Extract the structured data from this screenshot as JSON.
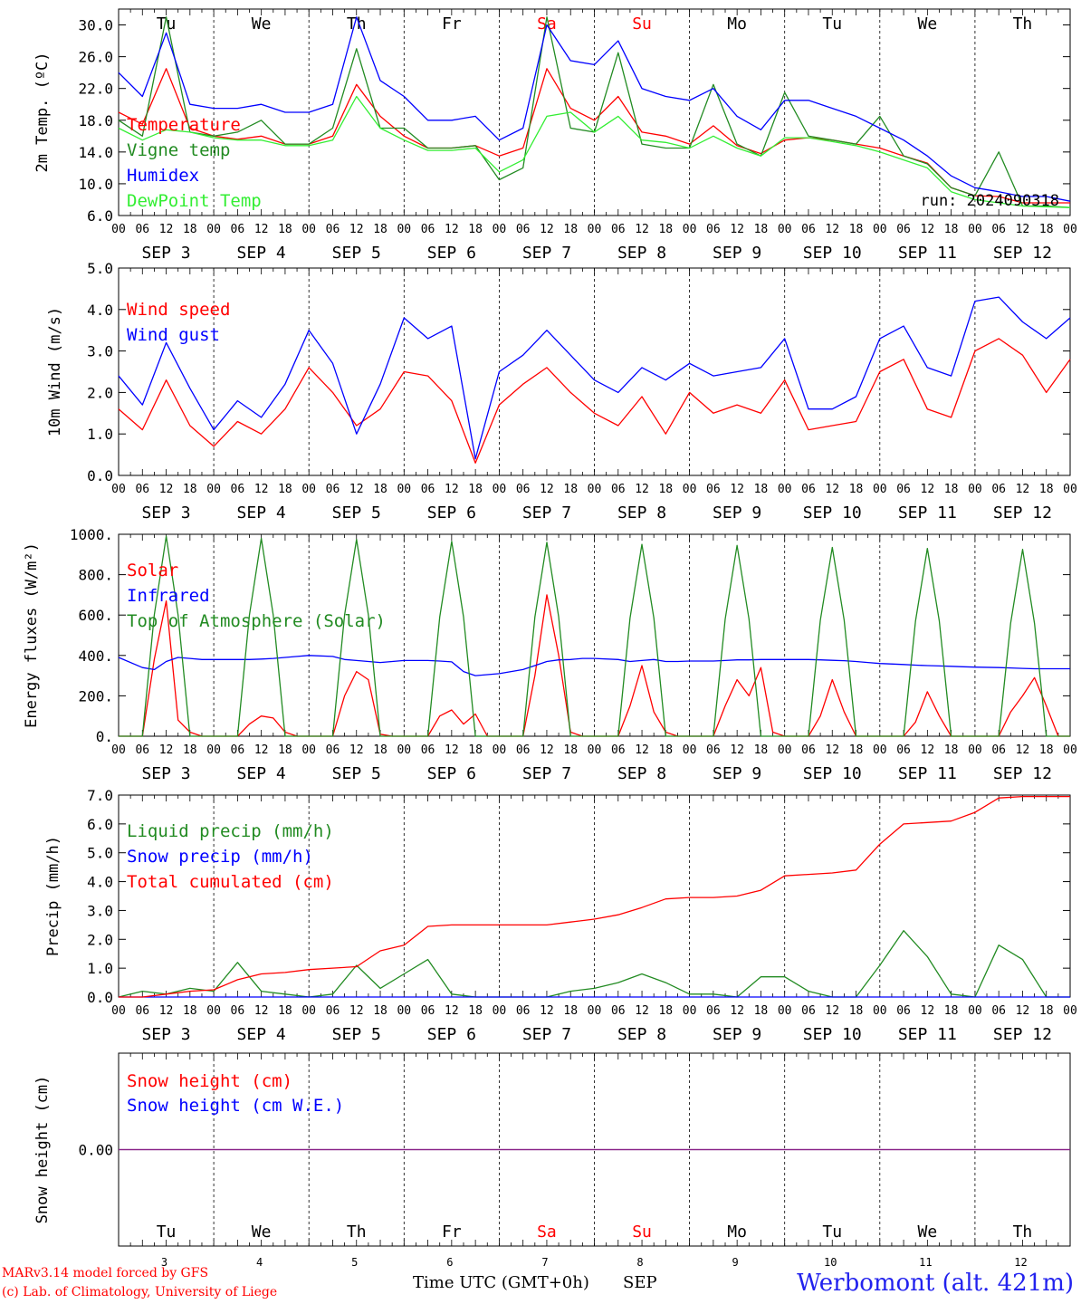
{
  "days": {
    "weekday_labels": [
      "Tu",
      "We",
      "Th",
      "Fr",
      "Sa",
      "Su",
      "Mo",
      "Tu",
      "We",
      "Th"
    ],
    "weekend_color": "#ff0000",
    "weekday_color": "#000000",
    "weekend_flags": [
      false,
      false,
      false,
      false,
      true,
      true,
      false,
      false,
      false,
      false
    ],
    "date_labels": [
      "SEP  3",
      "SEP  4",
      "SEP  5",
      "SEP  6",
      "SEP  7",
      "SEP  8",
      "SEP  9",
      "SEP 10",
      "SEP 11",
      "SEP 12"
    ],
    "day_numbers": [
      "3",
      "4",
      "5",
      "6",
      "7",
      "8",
      "9",
      "10",
      "11",
      "12"
    ],
    "hour_ticks": [
      "00",
      "06",
      "12",
      "18"
    ],
    "final_hour": "00"
  },
  "run_label": "run: 2024090318",
  "footer": {
    "model_line": "MARv3.14 model forced by GFS",
    "credit_line": "(c) Lab. of Climatology, University of Liege",
    "time_axis_label": "Time UTC (GMT+0h)",
    "month_label": "SEP",
    "station": "Werbomont (alt. 421m)"
  },
  "chart_data": [
    {
      "type": "line",
      "ylabel": "2m Temp. (ºC)",
      "ylim": [
        6,
        32
      ],
      "yticks": [
        6,
        10,
        14,
        18,
        22,
        26,
        30
      ],
      "ytick_labels": [
        "6.0",
        "10.0",
        "14.0",
        "18.0",
        "22.0",
        "26.0",
        "30.0"
      ],
      "x": [
        0,
        6,
        12,
        18,
        24,
        30,
        36,
        42,
        48,
        54,
        60,
        66,
        72,
        78,
        84,
        90,
        96,
        102,
        108,
        114,
        120,
        126,
        132,
        138,
        144,
        150,
        156,
        162,
        168,
        174,
        180,
        186,
        192,
        198,
        204,
        210,
        216,
        222,
        228,
        234,
        240
      ],
      "series": [
        {
          "name": "Temperature",
          "color": "#ff0000",
          "values": [
            19,
            17.5,
            24.5,
            17,
            16,
            15.6,
            16,
            15,
            15,
            16,
            22.5,
            18.5,
            16,
            14.5,
            14.5,
            14.8,
            13.5,
            14.5,
            24.5,
            19.5,
            18,
            21,
            16.5,
            16,
            15,
            17.3,
            14.8,
            13.8,
            15.5,
            15.8,
            15.5,
            15,
            14.5,
            13.5,
            12.6,
            9.5,
            8.5,
            8.4,
            7.6,
            7.6,
            7.6
          ]
        },
        {
          "name": "Vigne temp",
          "color": "#228b22",
          "values": [
            18,
            16,
            31,
            16.5,
            16,
            16.5,
            18,
            15,
            15,
            17,
            27,
            17,
            17,
            14.5,
            14.5,
            14.8,
            10.5,
            12,
            31,
            17,
            16.5,
            26.5,
            15,
            14.5,
            14.5,
            22.5,
            15,
            13.5,
            21.5,
            16,
            15.5,
            15,
            18.5,
            13.5,
            12.5,
            9.5,
            8.5,
            14,
            7.2,
            7.2,
            7
          ]
        },
        {
          "name": "Humidex",
          "color": "#0000ff",
          "values": [
            24,
            21,
            29,
            20,
            19.5,
            19.5,
            20,
            19,
            19,
            20,
            31,
            23,
            21,
            18,
            18,
            18.5,
            15.5,
            17,
            30,
            25.5,
            25,
            28,
            22,
            21,
            20.5,
            22,
            18.5,
            16.8,
            20.5,
            20.5,
            19.5,
            18.5,
            17,
            15.5,
            13.5,
            11,
            9.5,
            9,
            8.4,
            8.4,
            7.8
          ]
        },
        {
          "name": "DewPoint Temp",
          "color": "#33ee33",
          "values": [
            17,
            15.5,
            16.8,
            16.5,
            15.8,
            15.5,
            15.5,
            14.8,
            14.8,
            15.5,
            21,
            17,
            15.5,
            14.2,
            14.2,
            14.5,
            11.5,
            13,
            18.5,
            19,
            16.5,
            18.5,
            15.5,
            15.2,
            14.5,
            16,
            14.5,
            13.5,
            15.8,
            15.8,
            15.3,
            14.8,
            14,
            13,
            12,
            9,
            8,
            7.6,
            7.2,
            7.1,
            7
          ]
        }
      ],
      "legend_placement": "top-left",
      "grid": false
    },
    {
      "type": "line",
      "ylabel": "10m Wind (m/s)",
      "ylim": [
        0,
        5
      ],
      "yticks": [
        0,
        1,
        2,
        3,
        4,
        5
      ],
      "ytick_labels": [
        "0.0",
        "1.0",
        "2.0",
        "3.0",
        "4.0",
        "5.0"
      ],
      "x": [
        0,
        6,
        12,
        18,
        24,
        30,
        36,
        42,
        48,
        54,
        60,
        66,
        72,
        78,
        84,
        90,
        96,
        102,
        108,
        114,
        120,
        126,
        132,
        138,
        144,
        150,
        156,
        162,
        168,
        174,
        180,
        186,
        192,
        198,
        204,
        210,
        216,
        222,
        228,
        234,
        240
      ],
      "series": [
        {
          "name": "Wind speed",
          "color": "#ff0000",
          "values": [
            1.6,
            1.1,
            2.3,
            1.2,
            0.7,
            1.3,
            1.0,
            1.6,
            2.6,
            2.0,
            1.2,
            1.6,
            2.5,
            2.4,
            1.8,
            0.3,
            1.7,
            2.2,
            2.6,
            2.0,
            1.5,
            1.2,
            1.9,
            1.0,
            2.0,
            1.5,
            1.7,
            1.5,
            2.3,
            1.1,
            1.2,
            1.3,
            2.5,
            2.8,
            1.6,
            1.4,
            3.0,
            3.3,
            2.9,
            2.0,
            2.8
          ]
        },
        {
          "name": "Wind gust",
          "color": "#0000ff",
          "values": [
            2.4,
            1.7,
            3.2,
            2.1,
            1.1,
            1.8,
            1.4,
            2.2,
            3.5,
            2.7,
            1.0,
            2.2,
            3.8,
            3.3,
            3.6,
            0.4,
            2.5,
            2.9,
            3.5,
            2.9,
            2.3,
            2.0,
            2.6,
            2.3,
            2.7,
            2.4,
            2.5,
            2.6,
            3.3,
            1.6,
            1.6,
            1.9,
            3.3,
            3.6,
            2.6,
            2.4,
            4.2,
            4.3,
            3.7,
            3.3,
            3.8
          ]
        }
      ],
      "legend_placement": "top-left",
      "grid": false
    },
    {
      "type": "line",
      "ylabel": "Energy fluxes (W/m²)",
      "ylim": [
        0,
        1000
      ],
      "yticks": [
        0,
        200,
        400,
        600,
        800,
        1000
      ],
      "ytick_labels": [
        "0.",
        "200.",
        "400.",
        "600.",
        "800.",
        "1000."
      ],
      "x": [
        0,
        6,
        9,
        12,
        15,
        18,
        21,
        24,
        30,
        33,
        36,
        39,
        42,
        45,
        48,
        54,
        57,
        60,
        63,
        66,
        69,
        72,
        78,
        81,
        84,
        87,
        90,
        93,
        96,
        102,
        105,
        108,
        111,
        114,
        117,
        120,
        126,
        129,
        132,
        135,
        138,
        141,
        144,
        150,
        153,
        156,
        159,
        162,
        165,
        168,
        174,
        177,
        180,
        183,
        186,
        189,
        192,
        198,
        201,
        204,
        207,
        210,
        213,
        216,
        222,
        225,
        228,
        231,
        234,
        237,
        240
      ],
      "series": [
        {
          "name": "Solar",
          "color": "#ff0000",
          "values": [
            0,
            0,
            380,
            670,
            80,
            20,
            0,
            0,
            0,
            60,
            100,
            90,
            20,
            0,
            0,
            0,
            200,
            320,
            280,
            10,
            0,
            0,
            0,
            100,
            130,
            60,
            110,
            0,
            0,
            0,
            300,
            700,
            400,
            20,
            0,
            0,
            0,
            150,
            350,
            120,
            20,
            0,
            0,
            0,
            150,
            280,
            200,
            340,
            20,
            0,
            0,
            100,
            280,
            120,
            0,
            0,
            0,
            0,
            70,
            220,
            100,
            0,
            0,
            0,
            0,
            120,
            200,
            290,
            150,
            0,
            0
          ]
        },
        {
          "name": "Infrared",
          "color": "#0000ff",
          "values": [
            390,
            340,
            330,
            370,
            390,
            385,
            380,
            380,
            380,
            380,
            382,
            385,
            390,
            395,
            400,
            395,
            380,
            375,
            370,
            365,
            370,
            375,
            375,
            372,
            368,
            320,
            300,
            305,
            310,
            330,
            350,
            370,
            378,
            380,
            385,
            385,
            380,
            370,
            375,
            380,
            370,
            370,
            372,
            372,
            375,
            378,
            378,
            380,
            380,
            380,
            380,
            378,
            376,
            374,
            370,
            365,
            360,
            355,
            352,
            350,
            348,
            346,
            344,
            342,
            340,
            338,
            336,
            334,
            334,
            334,
            334
          ]
        },
        {
          "name": "Top of Atmosphere (Solar)",
          "color": "#228b22",
          "values": [
            0,
            0,
            600,
            990,
            600,
            0,
            0,
            0,
            0,
            600,
            980,
            600,
            0,
            0,
            0,
            0,
            600,
            975,
            600,
            0,
            0,
            0,
            0,
            590,
            965,
            590,
            0,
            0,
            0,
            0,
            590,
            960,
            590,
            0,
            0,
            0,
            0,
            585,
            950,
            585,
            0,
            0,
            0,
            0,
            580,
            945,
            580,
            0,
            0,
            0,
            0,
            575,
            935,
            575,
            0,
            0,
            0,
            0,
            570,
            930,
            570,
            0,
            0,
            0,
            0,
            560,
            925,
            560,
            0,
            0,
            0
          ]
        }
      ],
      "legend_placement": "top-left",
      "grid": false
    },
    {
      "type": "line",
      "ylabel": "Precip (mm/h)",
      "ylim": [
        0,
        7
      ],
      "yticks": [
        0,
        1,
        2,
        3,
        4,
        5,
        6,
        7
      ],
      "ytick_labels": [
        "0.0",
        "1.0",
        "2.0",
        "3.0",
        "4.0",
        "5.0",
        "6.0",
        "7.0"
      ],
      "x": [
        0,
        6,
        12,
        18,
        24,
        30,
        36,
        42,
        48,
        54,
        60,
        66,
        72,
        78,
        84,
        90,
        96,
        102,
        108,
        114,
        120,
        126,
        132,
        138,
        144,
        150,
        156,
        162,
        168,
        174,
        180,
        186,
        192,
        198,
        204,
        210,
        216,
        222,
        228,
        234,
        240
      ],
      "series": [
        {
          "name": "Liquid precip (mm/h)",
          "color": "#228b22",
          "values": [
            0,
            0.2,
            0.1,
            0.3,
            0.2,
            1.2,
            0.2,
            0.1,
            0,
            0.1,
            1.1,
            0.3,
            0.8,
            1.3,
            0.1,
            0,
            0,
            0,
            0,
            0.2,
            0.3,
            0.5,
            0.8,
            0.5,
            0.1,
            0.1,
            0,
            0.7,
            0.7,
            0.2,
            0,
            0,
            1.1,
            2.3,
            1.4,
            0.1,
            0,
            1.8,
            1.3,
            0,
            0
          ]
        },
        {
          "name": "Snow precip (mm/h)",
          "color": "#0000ff",
          "values": [
            0,
            0,
            0,
            0,
            0,
            0,
            0,
            0,
            0,
            0,
            0,
            0,
            0,
            0,
            0,
            0,
            0,
            0,
            0,
            0,
            0,
            0,
            0,
            0,
            0,
            0,
            0,
            0,
            0,
            0,
            0,
            0,
            0,
            0,
            0,
            0,
            0,
            0,
            0,
            0,
            0
          ]
        },
        {
          "name": "Total cumulated (cm)",
          "color": "#ff0000",
          "values": [
            0,
            0,
            0.1,
            0.2,
            0.25,
            0.6,
            0.8,
            0.85,
            0.95,
            1.0,
            1.05,
            1.6,
            1.8,
            2.45,
            2.5,
            2.5,
            2.5,
            2.5,
            2.5,
            2.6,
            2.7,
            2.85,
            3.1,
            3.4,
            3.45,
            3.45,
            3.5,
            3.7,
            4.2,
            4.25,
            4.3,
            4.4,
            5.3,
            6.0,
            6.05,
            6.1,
            6.4,
            6.9,
            6.95,
            6.95,
            6.95
          ]
        }
      ],
      "legend_placement": "top-left",
      "grid": false
    },
    {
      "type": "line",
      "ylabel": "Snow height (cm)",
      "ylim": [
        -1,
        1
      ],
      "yticks": [
        0
      ],
      "ytick_labels": [
        "0.00"
      ],
      "x": [
        0,
        240
      ],
      "series": [
        {
          "name": "Snow height (cm)",
          "color": "#ff0000",
          "values": [
            0,
            0
          ]
        },
        {
          "name": "Snow height (cm W.E.)",
          "color": "#0000ff",
          "values": [
            0,
            0
          ]
        }
      ],
      "legend_placement": "top-left",
      "grid": false
    }
  ]
}
